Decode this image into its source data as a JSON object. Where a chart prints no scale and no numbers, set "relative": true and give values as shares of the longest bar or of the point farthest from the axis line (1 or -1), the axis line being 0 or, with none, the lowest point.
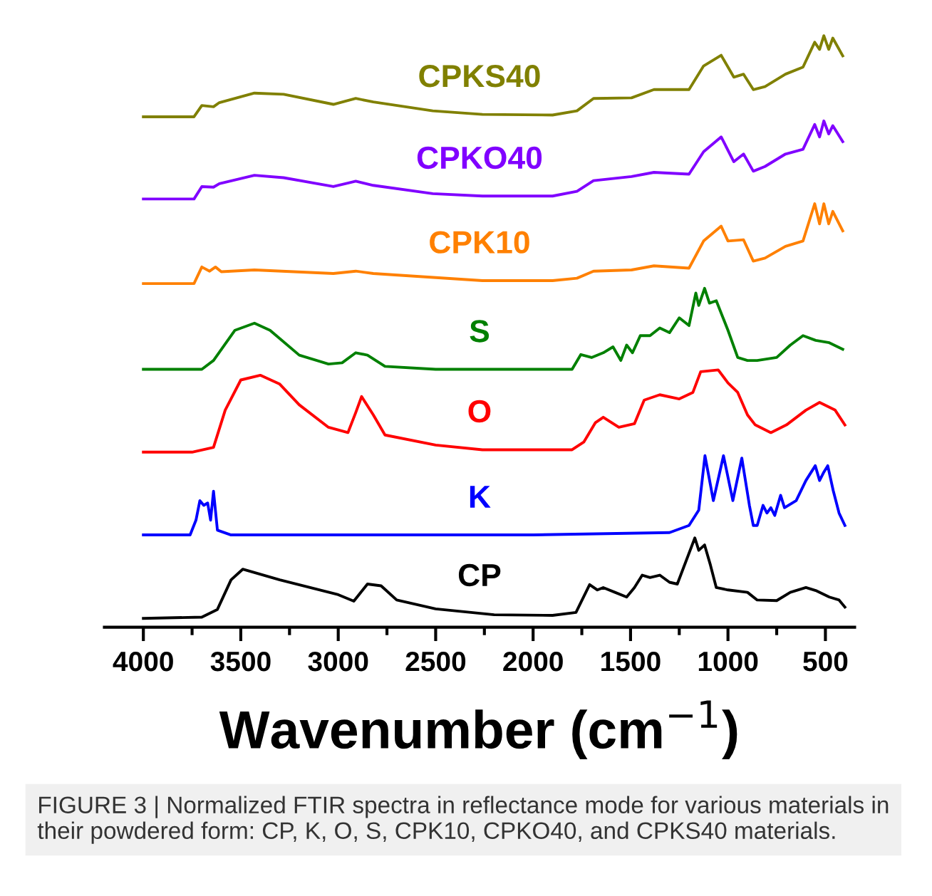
{
  "chart_data": {
    "type": "line",
    "relative": true,
    "xlabel": "Wavenumber (cm$^{−1}$)",
    "xlim": [
      4200,
      350
    ],
    "xticks": [
      4000,
      {
        "value": 3750,
        "label": null
      },
      3500,
      {
        "value": 3250,
        "label": null
      },
      3000,
      {
        "value": 2750,
        "label": null
      },
      2500,
      {
        "value": 2250,
        "label": null
      },
      2000,
      {
        "value": 1750,
        "label": null
      },
      1500,
      {
        "value": 1250,
        "label": null
      },
      1000,
      {
        "value": 750,
        "label": null
      },
      500
    ],
    "tick_labels": "x",
    "grid": false,
    "legend": false,
    "line_style": "solid",
    "marker": "none",
    "annotations": [
      "FIGURE 3 | Normalized FTIR spectra in reflectance mode for various materials in their powdered form: CP, K, O, S, CPK10, CPKO40, and CPKS40 materials."
    ],
    "series": [
      {
        "name": "CPKS40",
        "color": "#808000",
        "x": [
          4000,
          3740,
          3700,
          3640,
          3610,
          3430,
          3280,
          3025,
          2910,
          2820,
          2515,
          2260,
          1900,
          1775,
          1690,
          1495,
          1380,
          1200,
          1125,
          1035,
          970,
          920,
          870,
          810,
          705,
          615,
          555,
          530,
          508,
          483,
          462,
          411
        ],
        "values": [
          0.863,
          0.863,
          0.882,
          0.88,
          0.887,
          0.903,
          0.901,
          0.884,
          0.894,
          0.888,
          0.873,
          0.867,
          0.866,
          0.873,
          0.894,
          0.895,
          0.909,
          0.909,
          0.949,
          0.967,
          0.93,
          0.935,
          0.909,
          0.914,
          0.935,
          0.947,
          0.989,
          0.977,
          1.0,
          0.977,
          0.996,
          0.966
        ]
      },
      {
        "name": "CPKO40",
        "color": "#8000ff",
        "x": [
          4000,
          3740,
          3700,
          3640,
          3610,
          3430,
          3280,
          3025,
          2910,
          2820,
          2515,
          2260,
          1900,
          1775,
          1690,
          1495,
          1380,
          1200,
          1125,
          1035,
          970,
          920,
          870,
          810,
          705,
          615,
          555,
          530,
          508,
          483,
          462,
          411
        ],
        "values": [
          0.724,
          0.724,
          0.745,
          0.744,
          0.75,
          0.764,
          0.76,
          0.745,
          0.754,
          0.747,
          0.733,
          0.729,
          0.729,
          0.737,
          0.755,
          0.762,
          0.769,
          0.766,
          0.804,
          0.829,
          0.787,
          0.8,
          0.771,
          0.779,
          0.8,
          0.808,
          0.85,
          0.829,
          0.856,
          0.834,
          0.848,
          0.821
        ]
      },
      {
        "name": "CPK10",
        "color": "#ff8000",
        "x": [
          4000,
          3740,
          3700,
          3660,
          3630,
          3600,
          3430,
          3025,
          2910,
          2820,
          2260,
          1900,
          1775,
          1690,
          1495,
          1380,
          1200,
          1125,
          1035,
          1000,
          920,
          870,
          810,
          705,
          615,
          555,
          530,
          508,
          483,
          462,
          411
        ],
        "values": [
          0.581,
          0.581,
          0.609,
          0.602,
          0.609,
          0.601,
          0.604,
          0.598,
          0.602,
          0.598,
          0.586,
          0.586,
          0.59,
          0.602,
          0.604,
          0.611,
          0.607,
          0.653,
          0.678,
          0.653,
          0.655,
          0.619,
          0.624,
          0.644,
          0.653,
          0.716,
          0.682,
          0.716,
          0.682,
          0.703,
          0.67
        ]
      },
      {
        "name": "S",
        "color": "#008000",
        "x": [
          4000,
          3700,
          3640,
          3530,
          3430,
          3350,
          3200,
          3050,
          2980,
          2910,
          2850,
          2760,
          2500,
          2000,
          1800,
          1755,
          1700,
          1640,
          1590,
          1550,
          1520,
          1490,
          1450,
          1400,
          1350,
          1300,
          1250,
          1200,
          1165,
          1150,
          1120,
          1095,
          1060,
          1000,
          950,
          900,
          850,
          750,
          680,
          615,
          550,
          480,
          411
        ],
        "values": [
          0.436,
          0.436,
          0.451,
          0.502,
          0.514,
          0.502,
          0.46,
          0.445,
          0.447,
          0.464,
          0.46,
          0.441,
          0.436,
          0.436,
          0.436,
          0.461,
          0.456,
          0.464,
          0.474,
          0.451,
          0.477,
          0.464,
          0.493,
          0.493,
          0.506,
          0.498,
          0.523,
          0.51,
          0.565,
          0.544,
          0.573,
          0.548,
          0.552,
          0.502,
          0.456,
          0.451,
          0.451,
          0.456,
          0.477,
          0.493,
          0.485,
          0.481,
          0.47
        ]
      },
      {
        "name": "O",
        "color": "#ff0000",
        "x": [
          4000,
          3750,
          3640,
          3580,
          3500,
          3400,
          3300,
          3200,
          3050,
          2950,
          2910,
          2880,
          2820,
          2760,
          2500,
          2260,
          1800,
          1740,
          1680,
          1640,
          1560,
          1480,
          1430,
          1350,
          1250,
          1180,
          1140,
          1050,
          1000,
          950,
          900,
          860,
          780,
          700,
          600,
          530,
          450,
          400
        ],
        "values": [
          0.296,
          0.296,
          0.304,
          0.367,
          0.418,
          0.426,
          0.411,
          0.376,
          0.338,
          0.329,
          0.363,
          0.39,
          0.359,
          0.325,
          0.308,
          0.3,
          0.3,
          0.313,
          0.346,
          0.355,
          0.338,
          0.344,
          0.384,
          0.393,
          0.386,
          0.397,
          0.432,
          0.435,
          0.413,
          0.397,
          0.359,
          0.342,
          0.329,
          0.342,
          0.367,
          0.38,
          0.367,
          0.342
        ]
      },
      {
        "name": "K",
        "color": "#0000ff",
        "x": [
          4000,
          3760,
          3730,
          3710,
          3690,
          3670,
          3655,
          3640,
          3620,
          3550,
          2000,
          1300,
          1200,
          1150,
          1118,
          1075,
          1023,
          975,
          929,
          890,
          870,
          850,
          820,
          800,
          780,
          760,
          730,
          710,
          650,
          600,
          552,
          530,
          510,
          488,
          460,
          430,
          400
        ],
        "values": [
          0.156,
          0.156,
          0.181,
          0.214,
          0.206,
          0.21,
          0.181,
          0.23,
          0.164,
          0.156,
          0.156,
          0.16,
          0.172,
          0.198,
          0.29,
          0.214,
          0.29,
          0.214,
          0.286,
          0.206,
          0.172,
          0.172,
          0.206,
          0.193,
          0.202,
          0.189,
          0.223,
          0.202,
          0.214,
          0.248,
          0.273,
          0.248,
          0.261,
          0.273,
          0.231,
          0.193,
          0.172
        ]
      },
      {
        "name": "CP",
        "color": "#000000",
        "x": [
          4000,
          3700,
          3620,
          3550,
          3490,
          3300,
          3000,
          2920,
          2850,
          2780,
          2700,
          2500,
          2200,
          1900,
          1780,
          1710,
          1670,
          1640,
          1580,
          1520,
          1480,
          1440,
          1400,
          1350,
          1300,
          1260,
          1170,
          1150,
          1120,
          1090,
          1060,
          1000,
          900,
          850,
          750,
          680,
          600,
          550,
          480,
          430,
          400
        ],
        "values": [
          0.015,
          0.017,
          0.03,
          0.08,
          0.098,
          0.08,
          0.055,
          0.044,
          0.073,
          0.07,
          0.046,
          0.031,
          0.021,
          0.02,
          0.025,
          0.072,
          0.063,
          0.067,
          0.059,
          0.051,
          0.067,
          0.088,
          0.084,
          0.088,
          0.076,
          0.073,
          0.151,
          0.13,
          0.139,
          0.105,
          0.067,
          0.063,
          0.059,
          0.046,
          0.045,
          0.059,
          0.067,
          0.062,
          0.051,
          0.046,
          0.034
        ]
      }
    ]
  }
}
